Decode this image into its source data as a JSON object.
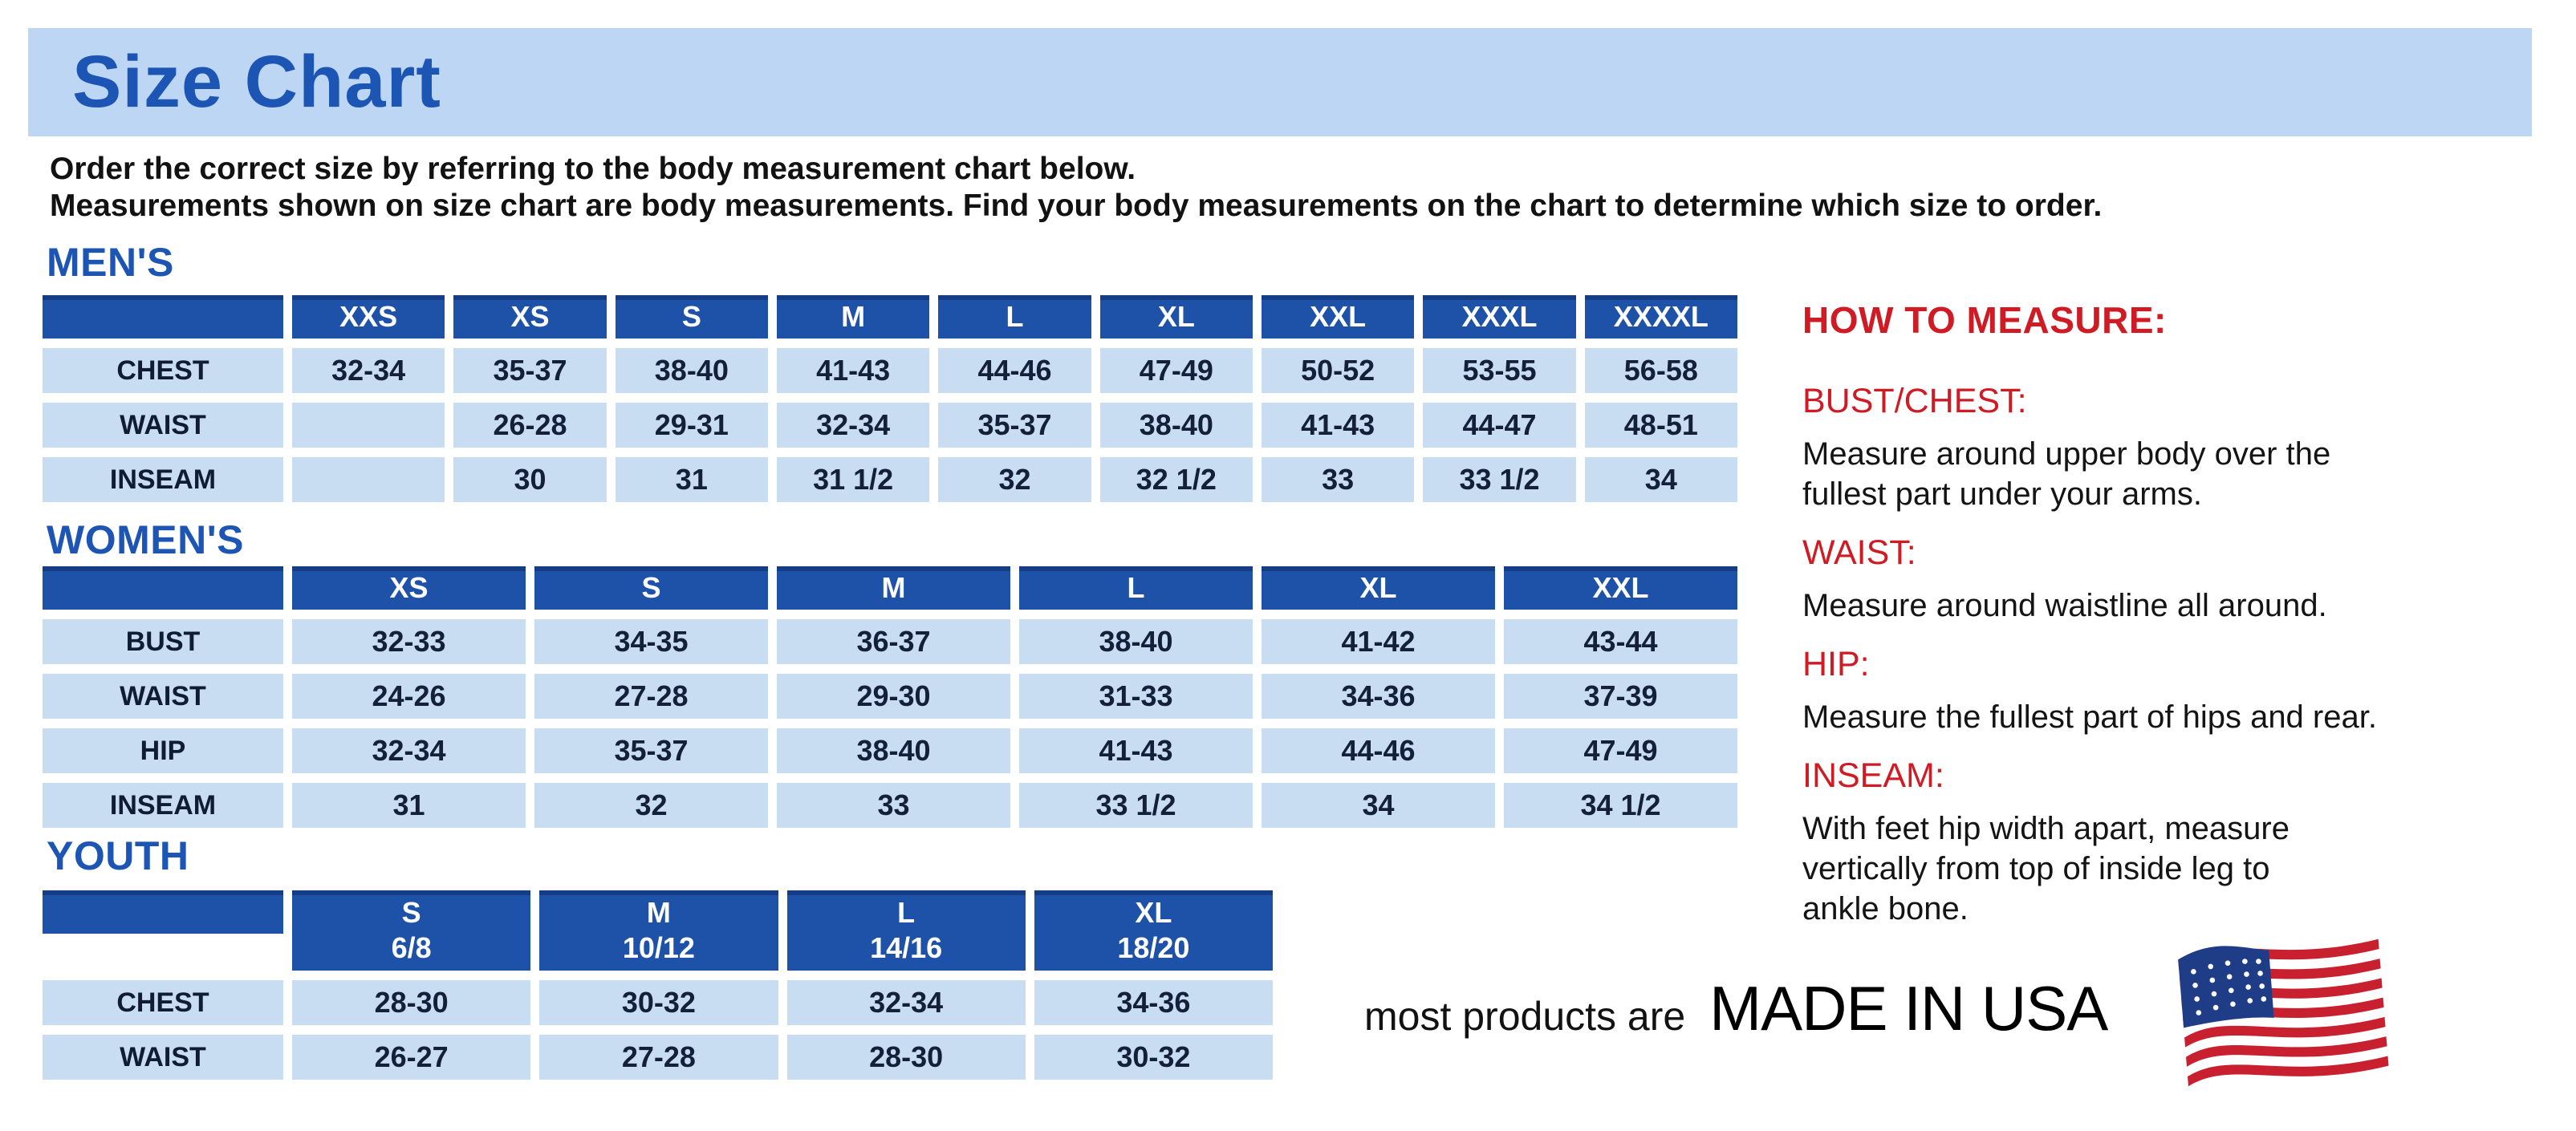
{
  "banner": {
    "title": "Size Chart"
  },
  "intro": {
    "line1": "Order the correct size by referring to the body measurement chart below.",
    "line2": "Measurements shown on size chart are body measurements.  Find your body measurements on the chart to determine which size to order."
  },
  "tables": {
    "mens": {
      "heading": "MEN'S",
      "columns": [
        "XXS",
        "XS",
        "S",
        "M",
        "L",
        "XL",
        "XXL",
        "XXXL",
        "XXXXL"
      ],
      "rows": [
        {
          "label": "CHEST",
          "values": [
            "32-34",
            "35-37",
            "38-40",
            "41-43",
            "44-46",
            "47-49",
            "50-52",
            "53-55",
            "56-58"
          ]
        },
        {
          "label": "WAIST",
          "values": [
            "",
            "26-28",
            "29-31",
            "32-34",
            "35-37",
            "38-40",
            "41-43",
            "44-47",
            "48-51"
          ]
        },
        {
          "label": "INSEAM",
          "values": [
            "",
            "30",
            "31",
            "31 1/2",
            "32",
            "32 1/2",
            "33",
            "33 1/2",
            "34"
          ]
        }
      ]
    },
    "womens": {
      "heading": "WOMEN'S",
      "columns": [
        "XS",
        "S",
        "M",
        "L",
        "XL",
        "XXL"
      ],
      "rows": [
        {
          "label": "BUST",
          "values": [
            "32-33",
            "34-35",
            "36-37",
            "38-40",
            "41-42",
            "43-44"
          ]
        },
        {
          "label": "WAIST",
          "values": [
            "24-26",
            "27-28",
            "29-30",
            "31-33",
            "34-36",
            "37-39"
          ]
        },
        {
          "label": "HIP",
          "values": [
            "32-34",
            "35-37",
            "38-40",
            "41-43",
            "44-46",
            "47-49"
          ]
        },
        {
          "label": "INSEAM",
          "values": [
            "31",
            "32",
            "33",
            "33 1/2",
            "34",
            "34 1/2"
          ]
        }
      ]
    },
    "youth": {
      "heading": "YOUTH",
      "columns": [
        {
          "size": "S",
          "range": "6/8"
        },
        {
          "size": "M",
          "range": "10/12"
        },
        {
          "size": "L",
          "range": "14/16"
        },
        {
          "size": "XL",
          "range": "18/20"
        }
      ],
      "rows": [
        {
          "label": "CHEST",
          "values": [
            "28-30",
            "30-32",
            "32-34",
            "34-36"
          ]
        },
        {
          "label": "WAIST",
          "values": [
            "26-27",
            "27-28",
            "28-30",
            "30-32"
          ]
        }
      ]
    }
  },
  "measure_guide": {
    "heading": "HOW TO MEASURE:",
    "items": [
      {
        "label": "BUST/CHEST:",
        "text": "Measure around upper body over the\nfullest part under your arms."
      },
      {
        "label": "WAIST:",
        "text": "Measure around waistline all around."
      },
      {
        "label": "HIP:",
        "text": "Measure the fullest part of hips and rear."
      },
      {
        "label": "INSEAM:",
        "text": "With feet hip width apart, measure\nvertically from top of inside leg to\nankle bone."
      }
    ]
  },
  "footer": {
    "prefix": "most products are",
    "made_in": "MADE IN USA",
    "flag_icon": "us-flag-icon"
  },
  "colors": {
    "banner_blue": "#BDD6F4",
    "heading_blue": "#1D55B4",
    "header_cell_blue": "#1E52A8",
    "data_cell_blue": "#C8DCF2",
    "accent_red": "#CF1B24"
  }
}
